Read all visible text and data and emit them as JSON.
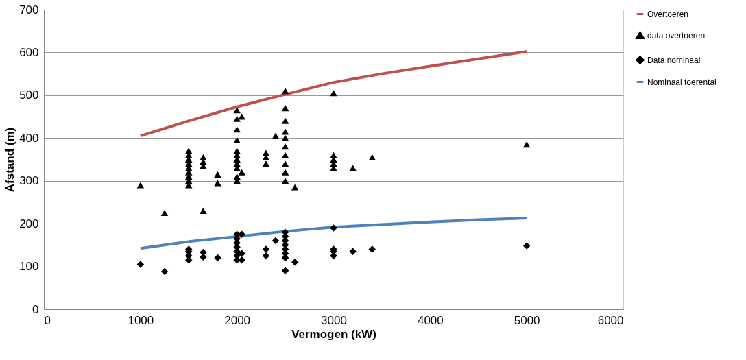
{
  "chart_data": {
    "type": "scatter",
    "xlabel": "Vermogen (kW)",
    "ylabel": "Afstand (m)",
    "xlim": [
      0,
      6000
    ],
    "xticks": [
      0,
      1000,
      2000,
      3000,
      4000,
      5000,
      6000
    ],
    "ylim": [
      0,
      700
    ],
    "yticks": [
      0,
      100,
      200,
      300,
      400,
      500,
      600,
      700
    ],
    "grid": "y",
    "legend": "right",
    "series": [
      {
        "name": "Overtoeren",
        "type": "line",
        "color": "#c0504d",
        "marker": "none",
        "line_style": "solid",
        "x": [
          1000,
          1500,
          2000,
          2500,
          3000,
          3500,
          4000,
          4500,
          5000
        ],
        "values": [
          405,
          440,
          473,
          502,
          530,
          550,
          568,
          585,
          602
        ]
      },
      {
        "name": "data overtoeren",
        "color": "#000000",
        "marker": "triangle",
        "x": [
          1000,
          1250,
          1500,
          1500,
          1500,
          1500,
          1500,
          1500,
          1500,
          1500,
          1500,
          1650,
          1650,
          1650,
          1650,
          1800,
          1800,
          2000,
          2000,
          2000,
          2000,
          2000,
          2000,
          2000,
          2000,
          2000,
          2000,
          2000,
          2050,
          2050,
          2300,
          2300,
          2300,
          2400,
          2500,
          2500,
          2500,
          2500,
          2500,
          2500,
          2500,
          2500,
          2500,
          2500,
          2600,
          3000,
          3000,
          3000,
          3000,
          3000,
          3200,
          3400,
          5000
        ],
        "values": [
          290,
          225,
          290,
          300,
          310,
          320,
          330,
          340,
          350,
          360,
          370,
          230,
          335,
          345,
          355,
          295,
          315,
          300,
          310,
          330,
          340,
          350,
          360,
          370,
          395,
          420,
          445,
          465,
          450,
          320,
          340,
          355,
          365,
          405,
          300,
          320,
          340,
          360,
          380,
          400,
          415,
          440,
          470,
          510,
          285,
          330,
          340,
          350,
          360,
          505,
          330,
          355,
          385
        ]
      },
      {
        "name": "Data nominaal",
        "color": "#000000",
        "marker": "diamond",
        "x": [
          1000,
          1250,
          1500,
          1500,
          1500,
          1500,
          1650,
          1650,
          1800,
          2000,
          2000,
          2000,
          2000,
          2000,
          2000,
          2000,
          2050,
          2050,
          2050,
          2300,
          2300,
          2400,
          2500,
          2500,
          2500,
          2500,
          2500,
          2500,
          2500,
          2500,
          2600,
          3000,
          3000,
          3000,
          3000,
          3200,
          3400,
          5000
        ],
        "values": [
          105,
          88,
          115,
          125,
          135,
          140,
          133,
          122,
          120,
          115,
          125,
          135,
          145,
          155,
          165,
          175,
          115,
          175,
          130,
          125,
          140,
          160,
          90,
          120,
          130,
          140,
          150,
          160,
          170,
          180,
          110,
          125,
          135,
          140,
          190,
          135,
          140,
          148
        ]
      },
      {
        "name": "Nominaal toerental",
        "type": "line",
        "color": "#4f81bd",
        "marker": "none",
        "line_style": "solid",
        "x": [
          1000,
          1500,
          2000,
          2500,
          3000,
          3500,
          4000,
          4500,
          5000
        ],
        "values": [
          142,
          158,
          170,
          182,
          192,
          198,
          204,
          209,
          213
        ]
      }
    ]
  }
}
